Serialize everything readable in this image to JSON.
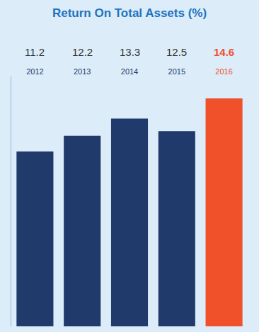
{
  "chart_data": {
    "type": "bar",
    "title": "Return On Total Assets (%)",
    "categories": [
      "2012",
      "2013",
      "2014",
      "2015",
      "2016"
    ],
    "values": [
      11.2,
      12.2,
      13.3,
      12.5,
      14.6
    ],
    "colors": [
      "#1f3a6b",
      "#1f3a6b",
      "#1f3a6b",
      "#1f3a6b",
      "#f0502a"
    ],
    "ylim": [
      0,
      16
    ],
    "data_labels": true,
    "tick_labels": "x",
    "grid": false
  }
}
